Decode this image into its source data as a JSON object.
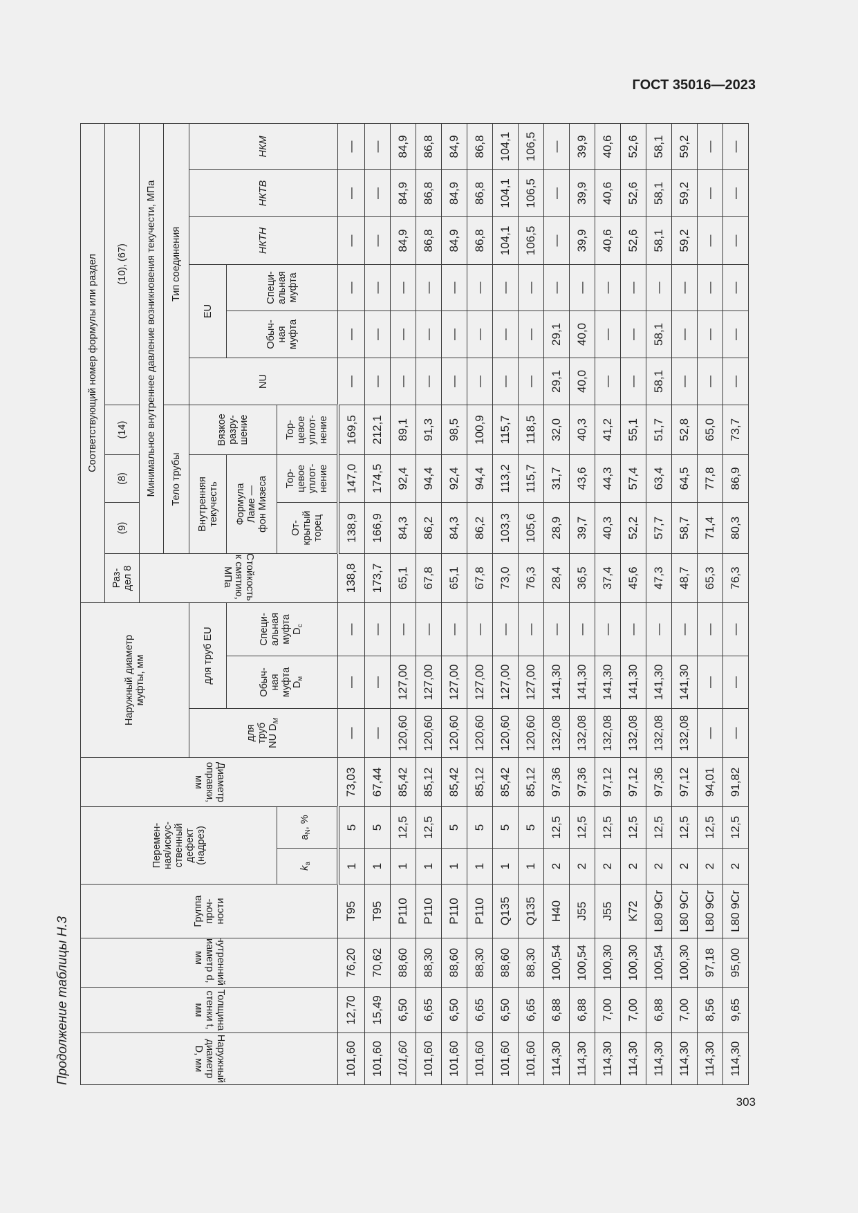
{
  "header": {
    "doc_id": "ГОСТ 35016—2023"
  },
  "caption": "Продолжение таблицы Н.3",
  "footer": {
    "page_number": "303"
  },
  "table": {
    "h": {
      "outer_d": "Наружный диаметр D, мм",
      "wall": "Толщина стенки t, мм",
      "inner_d": "Внутренний диаметр d, мм",
      "grade": "Группа\nпроч-\nности",
      "defect": "Перемен-\nная/искус-\nственный\nдефект\n(надрез)",
      "ka": "k",
      "ka_sub": "a",
      "an": "a",
      "an_sub": "N",
      "an_unit": ", %",
      "mandrel": "Диаметр оправки, мм",
      "coupling_d": "Наружный диаметр\nмуфты, мм",
      "nu_pipes": "для\nтруб\nNU D",
      "nu_pipes_sub": "M",
      "eu_pipes": "для труб EU",
      "regular_coupling": "Обыч-\nная\nмуфта\nD",
      "regular_coupling_sub": "м",
      "special_coupling": "Специ-\nальная\nмуфта\nD",
      "special_coupling_sub": "c",
      "formula_ref": "Соответствующий номер формулы или раздел",
      "section8": "Раз-\nдел 8",
      "collapse": "Стойкость к смятию, МПа",
      "f9": "(9)",
      "f8": "(8)",
      "f14": "(14)",
      "f10_67": "(10), (67)",
      "min_pressure": "Минимальное внутреннее давление возникновения текучести, МПа",
      "pipe_body": "Тело трубы",
      "connection_type": "Тип соединения",
      "internal_yield": "Внутренняя\nтекучесть",
      "lame": "Формула\nЛаме —\nфон Мизеса",
      "ductile": "Вязкое\nразру-\nшение",
      "open_end": "От-\nкрытый\nторец",
      "end_seal": "Тор-\nцевое\nуплот-\nнение",
      "end_seal2": "Тор-\nцевое\nуплот-\nнение",
      "nu": "NU",
      "eu": "EU",
      "eu_regular": "Обыч-\nная\nмуфта",
      "eu_special": "Специ-\nальная\nмуфта",
      "nktn": "НКТН",
      "nktv": "НКТВ",
      "nkm": "НКМ"
    },
    "rows": [
      [
        "101,60",
        "12,70",
        "76,20",
        "T95",
        "1",
        "5",
        "73,03",
        "—",
        "—",
        "—",
        "138,8",
        "138,9",
        "147,0",
        "169,5",
        "—",
        "—",
        "—",
        "—",
        "—",
        "—"
      ],
      [
        "101,60",
        "15,49",
        "70,62",
        "T95",
        "1",
        "5",
        "67,44",
        "—",
        "—",
        "—",
        "173,7",
        "166,9",
        "174,5",
        "212,1",
        "—",
        "—",
        "—",
        "—",
        "—",
        "—"
      ],
      [
        "101,60",
        "6,50",
        "88,60",
        "P110",
        "1",
        "12,5",
        "85,42",
        "120,60",
        "127,00",
        "—",
        "65,1",
        "84,3",
        "92,4",
        "89,1",
        "—",
        "—",
        "—",
        "84,9",
        "84,9",
        "84,9"
      ],
      [
        "101,60",
        "6,65",
        "88,30",
        "P110",
        "1",
        "12,5",
        "85,12",
        "120,60",
        "127,00",
        "—",
        "67,8",
        "86,2",
        "94,4",
        "91,3",
        "—",
        "—",
        "—",
        "86,8",
        "86,8",
        "86,8"
      ],
      [
        "101,60",
        "6,50",
        "88,60",
        "P110",
        "1",
        "5",
        "85,42",
        "120,60",
        "127,00",
        "—",
        "65,1",
        "84,3",
        "92,4",
        "98,5",
        "—",
        "—",
        "—",
        "84,9",
        "84,9",
        "84,9"
      ],
      [
        "101,60",
        "6,65",
        "88,30",
        "P110",
        "1",
        "5",
        "85,12",
        "120,60",
        "127,00",
        "—",
        "67,8",
        "86,2",
        "94,4",
        "100,9",
        "—",
        "—",
        "—",
        "86,8",
        "86,8",
        "86,8"
      ],
      [
        "101,60",
        "6,50",
        "88,60",
        "Q135",
        "1",
        "5",
        "85,42",
        "120,60",
        "127,00",
        "—",
        "73,0",
        "103,3",
        "113,2",
        "115,7",
        "—",
        "—",
        "—",
        "104,1",
        "104,1",
        "104,1"
      ],
      [
        "101,60",
        "6,65",
        "88,30",
        "Q135",
        "1",
        "5",
        "85,12",
        "120,60",
        "127,00",
        "—",
        "76,3",
        "105,6",
        "115,7",
        "118,5",
        "—",
        "—",
        "—",
        "106,5",
        "106,5",
        "106,5"
      ],
      [
        "114,30",
        "6,88",
        "100,54",
        "H40",
        "2",
        "12,5",
        "97,36",
        "132,08",
        "141,30",
        "—",
        "28,4",
        "28,9",
        "31,7",
        "32,0",
        "29,1",
        "29,1",
        "—",
        "—",
        "—",
        "—"
      ],
      [
        "114,30",
        "6,88",
        "100,54",
        "J55",
        "2",
        "12,5",
        "97,36",
        "132,08",
        "141,30",
        "—",
        "36,5",
        "39,7",
        "43,6",
        "40,3",
        "40,0",
        "40,0",
        "—",
        "39,9",
        "39,9",
        "39,9"
      ],
      [
        "114,30",
        "7,00",
        "100,30",
        "J55",
        "2",
        "12,5",
        "97,12",
        "132,08",
        "141,30",
        "—",
        "37,4",
        "40,3",
        "44,3",
        "41,2",
        "—",
        "—",
        "—",
        "40,6",
        "40,6",
        "40,6"
      ],
      [
        "114,30",
        "7,00",
        "100,30",
        "K72",
        "2",
        "12,5",
        "97,12",
        "132,08",
        "141,30",
        "—",
        "45,6",
        "52,2",
        "57,4",
        "55,1",
        "—",
        "—",
        "—",
        "52,6",
        "52,6",
        "52,6"
      ],
      [
        "114,30",
        "6,88",
        "100,54",
        "L80 9Cr",
        "2",
        "12,5",
        "97,36",
        "132,08",
        "141,30",
        "—",
        "47,3",
        "57,7",
        "63,4",
        "51,7",
        "58,1",
        "58,1",
        "—",
        "58,1",
        "58,1",
        "58,1"
      ],
      [
        "114,30",
        "7,00",
        "100,30",
        "L80 9Cr",
        "2",
        "12,5",
        "97,12",
        "132,08",
        "141,30",
        "—",
        "48,7",
        "58,7",
        "64,5",
        "52,8",
        "—",
        "—",
        "—",
        "59,2",
        "59,2",
        "59,2"
      ],
      [
        "114,30",
        "8,56",
        "97,18",
        "L80 9Cr",
        "2",
        "12,5",
        "94,01",
        "—",
        "—",
        "—",
        "65,3",
        "71,4",
        "77,8",
        "65,0",
        "—",
        "—",
        "—",
        "—",
        "—",
        "—"
      ],
      [
        "114,30",
        "9,65",
        "95,00",
        "L80 9Cr",
        "2",
        "12,5",
        "91,82",
        "—",
        "—",
        "—",
        "76,3",
        "80,3",
        "86,9",
        "73,7",
        "—",
        "—",
        "—",
        "—",
        "—",
        "—"
      ]
    ]
  }
}
